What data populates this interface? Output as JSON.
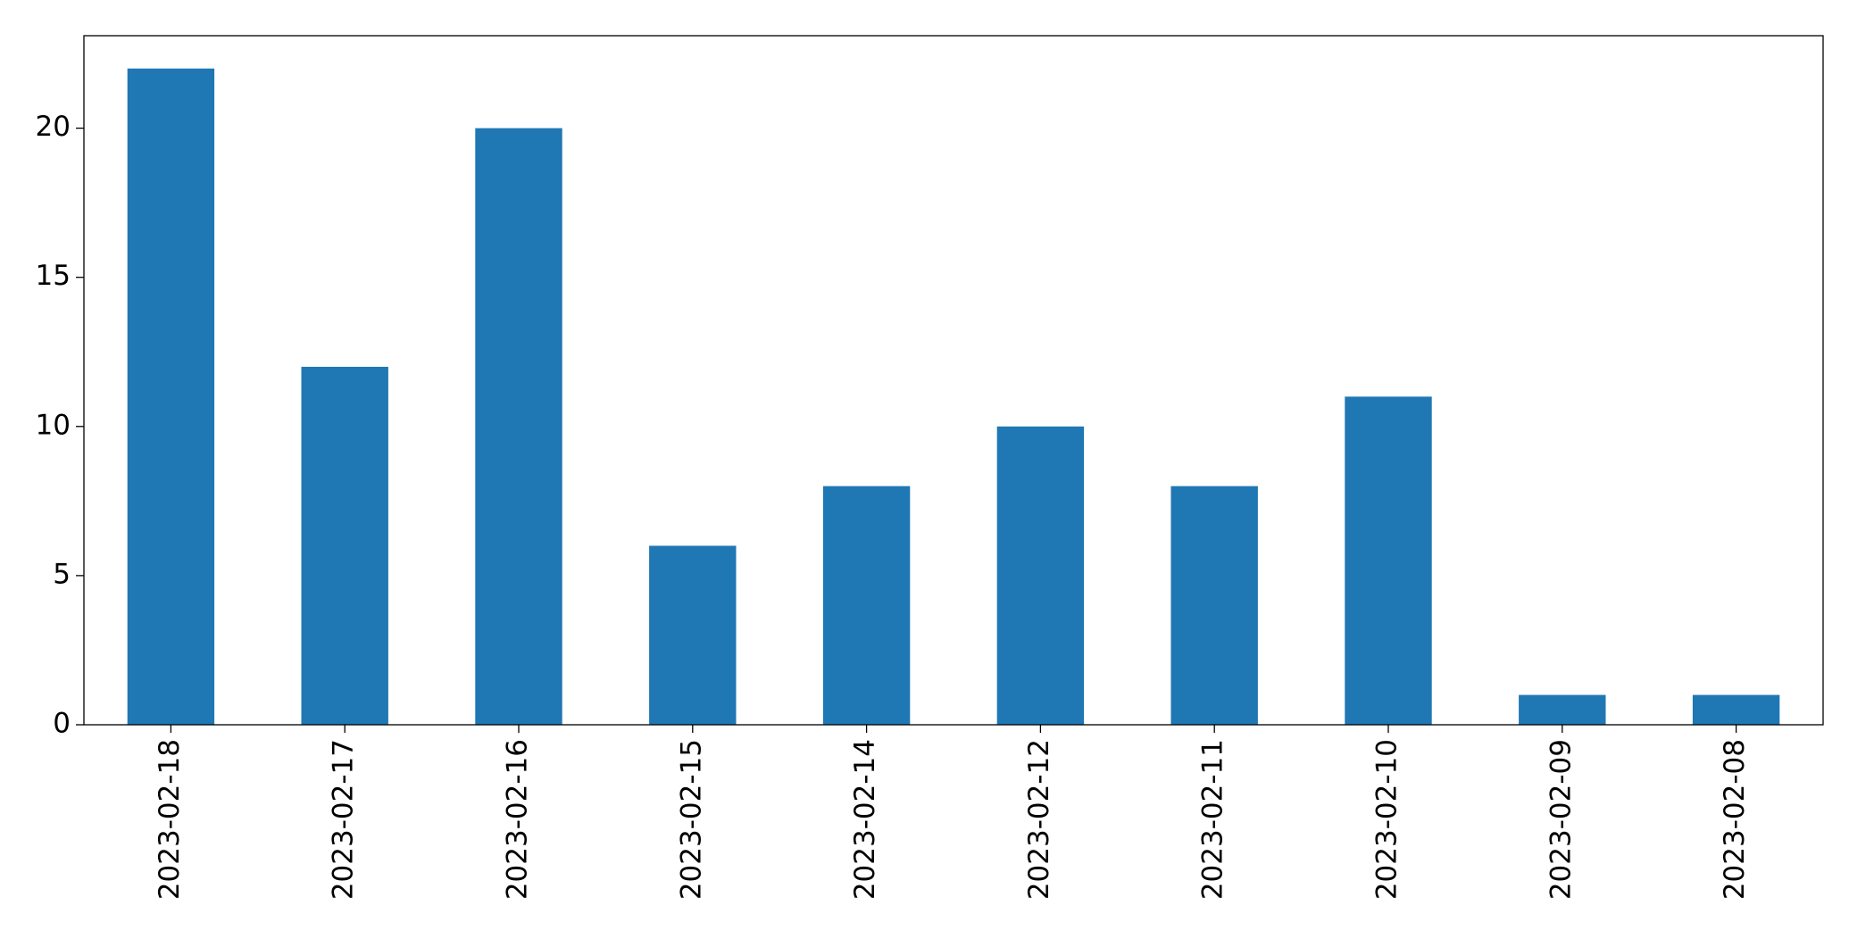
{
  "chart_data": {
    "type": "bar",
    "categories": [
      "2023-02-18",
      "2023-02-17",
      "2023-02-16",
      "2023-02-15",
      "2023-02-14",
      "2023-02-12",
      "2023-02-11",
      "2023-02-10",
      "2023-02-09",
      "2023-02-08"
    ],
    "values": [
      22,
      12,
      20,
      6,
      8,
      10,
      8,
      11,
      1,
      1
    ],
    "color": "#1f77b4",
    "ylim": [
      0,
      23.1
    ],
    "yticks": [
      0,
      5,
      10,
      15,
      20
    ],
    "grid": false
  }
}
